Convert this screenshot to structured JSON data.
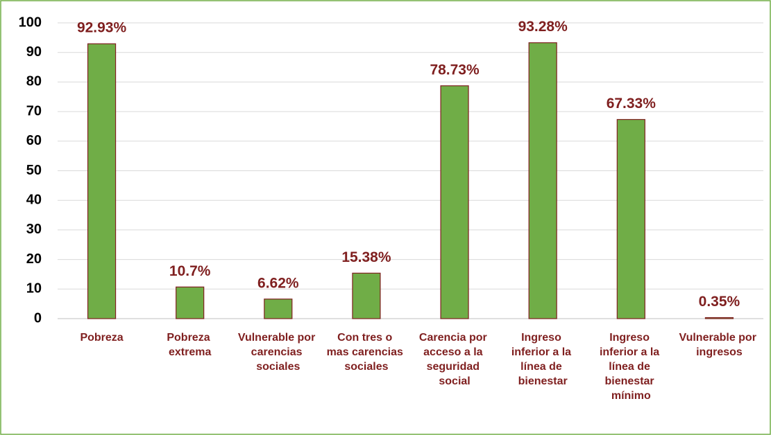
{
  "chart_data": {
    "type": "bar",
    "categories": [
      "Pobreza",
      "Pobreza extrema",
      "Vulnerable por carencias sociales",
      "Con tres o mas carencias sociales",
      "Carencia por acceso a la seguridad social",
      "Ingreso inferior a la línea de bienestar",
      "Ingreso inferior a la línea de bienestar mínimo",
      "Vulnerable por ingresos"
    ],
    "values": [
      92.93,
      10.7,
      6.62,
      15.38,
      78.73,
      93.28,
      67.33,
      0.35
    ],
    "value_labels": [
      "92.93%",
      "10.7%",
      "6.62%",
      "15.38%",
      "78.73%",
      "93.28%",
      "67.33%",
      "0.35%"
    ],
    "color": "#70ad47",
    "ylim": [
      0,
      100
    ],
    "yticks": [
      0,
      10,
      20,
      30,
      40,
      50,
      60,
      70,
      80,
      90,
      100
    ],
    "grid": true
  }
}
